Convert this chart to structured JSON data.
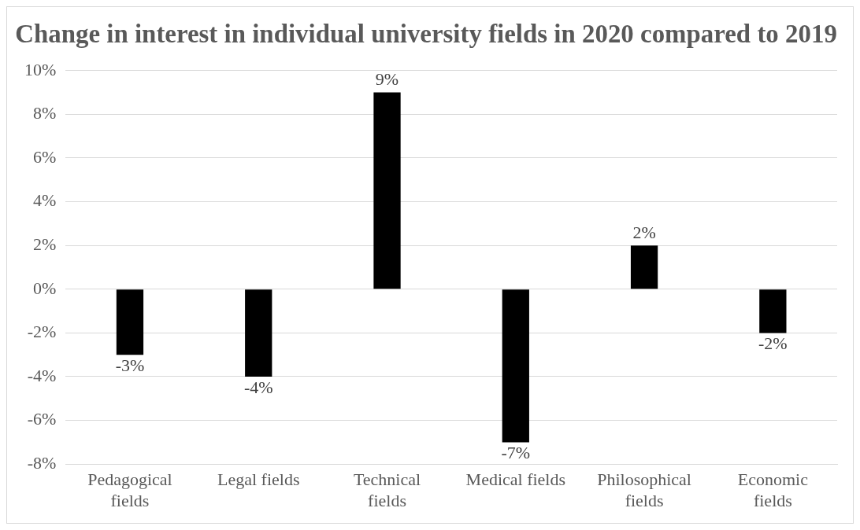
{
  "chart_data": {
    "type": "bar",
    "title": "Change in interest in individual university fields in 2020 compared to 2019",
    "categories": [
      "Pedagogical fields",
      "Legal fields",
      "Technical fields",
      "Medical fields",
      "Philosophical fields",
      "Economic fields"
    ],
    "values": [
      -3,
      -4,
      9,
      -7,
      2,
      -2
    ],
    "value_labels": [
      "-3%",
      "-4%",
      "9%",
      "-7%",
      "2%",
      "-2%"
    ],
    "color": "#000000",
    "ylim": [
      -8,
      10
    ],
    "yticks": [
      {
        "value": -8,
        "label": "-8%"
      },
      {
        "value": -6,
        "label": "-6%"
      },
      {
        "value": -4,
        "label": "-4%"
      },
      {
        "value": -2,
        "label": "-2%"
      },
      {
        "value": 0,
        "label": "0%"
      },
      {
        "value": 2,
        "label": "2%"
      },
      {
        "value": 4,
        "label": "4%"
      },
      {
        "value": 6,
        "label": "6%"
      },
      {
        "value": 8,
        "label": "8%"
      },
      {
        "value": 10,
        "label": "10%"
      }
    ],
    "grid": "y",
    "legend": false
  }
}
